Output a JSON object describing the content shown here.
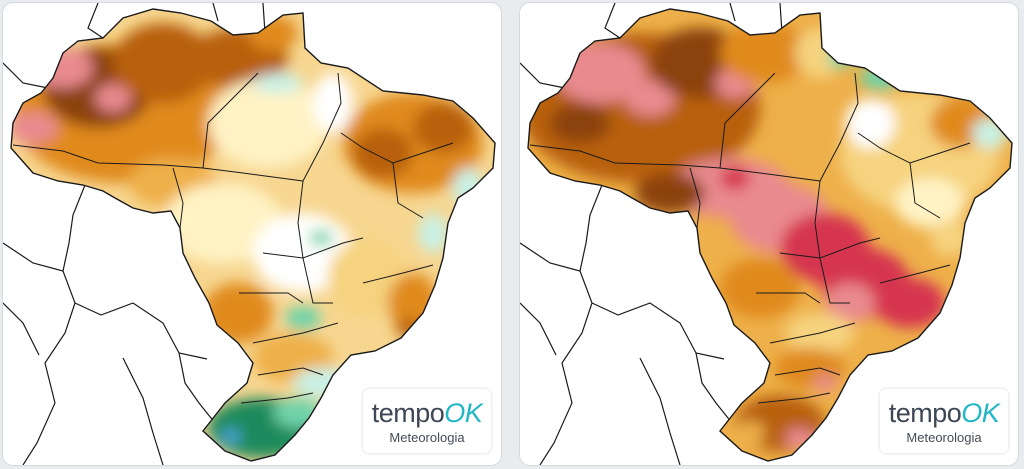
{
  "colors": {
    "page_bg": "#e9ecef",
    "panel_bg": "#ffffff",
    "border_lines": "#1a1a1a",
    "scale": {
      "dark_green": "#1e8a5b",
      "green": "#6fd3a9",
      "light_cyan": "#c9f1e6",
      "white": "#ffffff",
      "pale_yellow": "#fff3c4",
      "yellow": "#f6d37f",
      "light_orange": "#eeb04a",
      "orange": "#e08a1e",
      "dark_orange": "#b8610e",
      "brown": "#8c420a",
      "pink": "#e98a8f",
      "red": "#d6344f",
      "blue": "#4ea5e0"
    },
    "logo_text": "#3d4756",
    "logo_accent": "#22b6c7"
  },
  "maps": [
    {
      "id": "left",
      "logo": {
        "word_part1": "tempo",
        "word_part2": "OK",
        "subtitle": "Meteorologia"
      }
    },
    {
      "id": "right",
      "logo": {
        "word_part1": "tempo",
        "word_part2": "OK",
        "subtitle": "Meteorologia"
      }
    }
  ]
}
